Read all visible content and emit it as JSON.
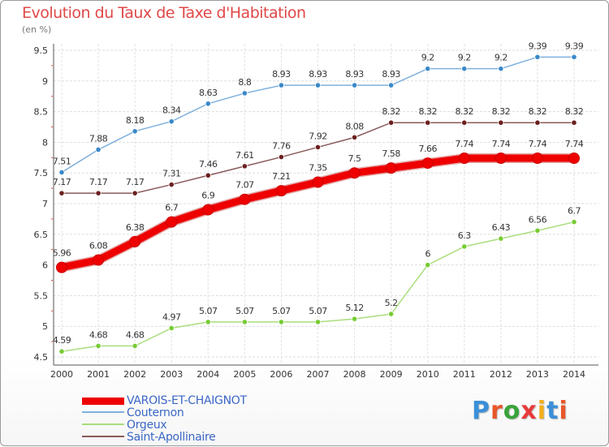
{
  "title": "Evolution du Taux de Taxe d'Habitation",
  "unit": "(en %)",
  "brand": "Proxiti",
  "brand_colors": [
    "#3b8fd8",
    "#e8572a",
    "#3aa33a",
    "#e83a3a",
    "#f2b01e",
    "#3b8fd8",
    "#e8572a"
  ],
  "chart_data": {
    "type": "line",
    "x": [
      2000,
      2001,
      2002,
      2003,
      2004,
      2005,
      2006,
      2007,
      2008,
      2009,
      2010,
      2011,
      2012,
      2013,
      2014
    ],
    "ylim": [
      4.5,
      9.5
    ],
    "yticks": [
      4.5,
      5,
      5.5,
      6,
      6.5,
      7,
      7.5,
      8,
      8.5,
      9,
      9.5
    ],
    "ytick_labels": [
      "4.5",
      "5",
      "5.5",
      "6",
      "6.5",
      "7",
      "7.5",
      "8",
      "8.5",
      "9",
      "9.5"
    ],
    "grid": true,
    "legend_position": "bottom-left",
    "series": [
      {
        "name": "VAROIS-ET-CHAIGNOT",
        "color": "#ee0000",
        "emphasis": true,
        "values": [
          5.96,
          6.08,
          6.38,
          6.7,
          6.9,
          7.07,
          7.21,
          7.35,
          7.5,
          7.58,
          7.66,
          7.74,
          7.74,
          7.74,
          7.74
        ],
        "labels": [
          "5.96",
          "6.08",
          "6.38",
          "6.7",
          "6.9",
          "7.07",
          "7.21",
          "7.35",
          "7.5",
          "7.58",
          "7.66",
          "7.74",
          "7.74",
          "7.74",
          "7.74"
        ]
      },
      {
        "name": "Couternon",
        "color": "#7fb0dc",
        "marker_color": "#3a88c8",
        "values": [
          7.51,
          7.88,
          8.18,
          8.34,
          8.63,
          8.8,
          8.93,
          8.93,
          8.93,
          8.93,
          9.2,
          9.2,
          9.2,
          9.39,
          9.39
        ],
        "labels": [
          "7.51",
          "7.88",
          "8.18",
          "8.34",
          "8.63",
          "8.8",
          "8.93",
          "8.93",
          "8.93",
          "8.93",
          "9.2",
          "9.2",
          "9.2",
          "9.39",
          "9.39"
        ]
      },
      {
        "name": "Orgeux",
        "color": "#a9dd7c",
        "marker_color": "#77cc33",
        "values": [
          4.59,
          4.68,
          4.68,
          4.97,
          5.07,
          5.07,
          5.07,
          5.07,
          5.12,
          5.2,
          6,
          6.3,
          6.43,
          6.56,
          6.7
        ],
        "labels": [
          "4.59",
          "4.68",
          "4.68",
          "4.97",
          "5.07",
          "5.07",
          "5.07",
          "5.07",
          "5.12",
          "5.2",
          "6",
          "6.3",
          "6.43",
          "6.56",
          "6.7"
        ]
      },
      {
        "name": "Saint-Apollinaire",
        "color": "#8a5a5a",
        "marker_color": "#6b1f1f",
        "values": [
          7.17,
          7.17,
          7.17,
          7.31,
          7.46,
          7.61,
          7.76,
          7.92,
          8.08,
          8.32,
          8.32,
          8.32,
          8.32,
          8.32,
          8.32
        ],
        "labels": [
          "7.17",
          "7.17",
          "7.17",
          "7.31",
          "7.46",
          "7.61",
          "7.76",
          "7.92",
          "8.08",
          "8.32",
          "8.32",
          "8.32",
          "8.32",
          "8.32",
          "8.32"
        ]
      }
    ]
  }
}
